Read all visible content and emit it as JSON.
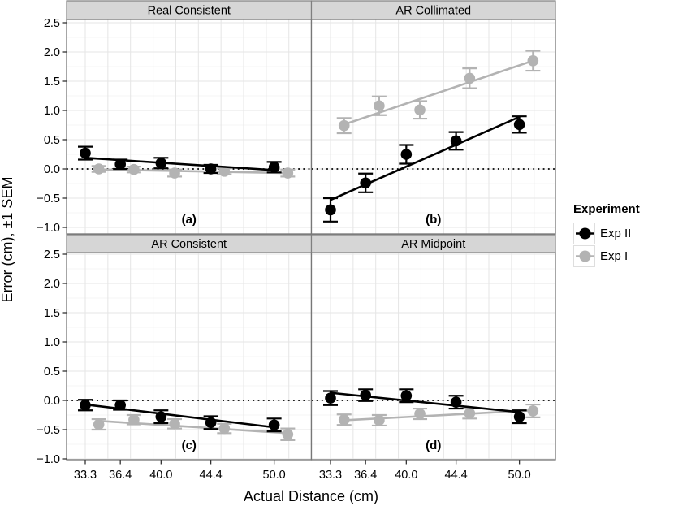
{
  "chart_data": {
    "type": "scatter",
    "title": "",
    "xlabel": "Actual Distance (cm)",
    "ylabel": "Error (cm), ±1 SEM",
    "xlim": [
      31.6,
      53.3
    ],
    "ylim": [
      -1.0,
      2.5
    ],
    "grid": "major+minor",
    "x_ticks": [
      33.3,
      36.4,
      40.0,
      44.4,
      50.0
    ],
    "x_tick_labels": [
      "33.3",
      "36.4",
      "40.0",
      "44.4",
      "50.0"
    ],
    "y_ticks": [
      2.5,
      2.0,
      1.5,
      1.0,
      0.5,
      0.0,
      -0.5,
      -1.0
    ],
    "y_tick_labels": [
      "2.5",
      "2.0",
      "1.5",
      "1.0",
      "0.5",
      "0.0",
      "−0.5",
      "−1.0"
    ],
    "zero_line": {
      "y": 0,
      "style": "dotted",
      "color": "#000000"
    },
    "dodge_cm": 1.2,
    "colors": {
      "exp2": "#000000",
      "exp1": "#b3b3b3",
      "strip_bg": "#d6d6d6",
      "strip_border": "#7f7f7f",
      "panel_border": "#777777",
      "grid_major": "#e5e5e5",
      "grid_minor": "#f4f4f4",
      "tick": "#333333"
    },
    "legend": {
      "title": "Experiment",
      "position": "right",
      "items": [
        {
          "name": "Exp II",
          "color": "#000000"
        },
        {
          "name": "Exp I",
          "color": "#b3b3b3"
        }
      ]
    },
    "panels": [
      {
        "id": "a",
        "facet": "Real Consistent",
        "label": "(a)",
        "series": [
          {
            "name": "Exp II",
            "color": "#000000",
            "x": [
              33.3,
              36.4,
              40.0,
              44.4,
              50.0
            ],
            "y": [
              0.27,
              0.08,
              0.1,
              0.0,
              0.03
            ],
            "sem": [
              0.11,
              0.08,
              0.09,
              0.07,
              0.09
            ],
            "trend": {
              "x1": 33.3,
              "y1": 0.19,
              "x2": 50.0,
              "y2": -0.02
            }
          },
          {
            "name": "Exp I",
            "color": "#b3b3b3",
            "x": [
              33.3,
              36.4,
              40.0,
              44.4,
              50.0
            ],
            "y": [
              0.0,
              -0.01,
              -0.07,
              -0.04,
              -0.07
            ],
            "sem": [
              0.05,
              0.05,
              0.06,
              0.05,
              0.06
            ],
            "trend": {
              "x1": 33.3,
              "y1": -0.01,
              "x2": 50.0,
              "y2": -0.07
            }
          }
        ]
      },
      {
        "id": "b",
        "facet": "AR Collimated",
        "label": "(b)",
        "series": [
          {
            "name": "Exp II",
            "color": "#000000",
            "x": [
              33.3,
              36.4,
              40.0,
              44.4,
              50.0
            ],
            "y": [
              -0.7,
              -0.24,
              0.25,
              0.48,
              0.76
            ],
            "sem": [
              0.2,
              0.16,
              0.16,
              0.15,
              0.14
            ],
            "trend": {
              "x1": 33.3,
              "y1": -0.53,
              "x2": 50.0,
              "y2": 0.89
            }
          },
          {
            "name": "Exp I",
            "color": "#b3b3b3",
            "x": [
              33.3,
              36.4,
              40.0,
              44.4,
              50.0
            ],
            "y": [
              0.74,
              1.08,
              1.01,
              1.55,
              1.85
            ],
            "sem": [
              0.13,
              0.16,
              0.15,
              0.17,
              0.17
            ],
            "trend": {
              "x1": 33.3,
              "y1": 0.76,
              "x2": 50.0,
              "y2": 1.85
            }
          }
        ]
      },
      {
        "id": "c",
        "facet": "AR Consistent",
        "label": "(c)",
        "series": [
          {
            "name": "Exp II",
            "color": "#000000",
            "x": [
              33.3,
              36.4,
              40.0,
              44.4,
              50.0
            ],
            "y": [
              -0.08,
              -0.08,
              -0.28,
              -0.38,
              -0.42
            ],
            "sem": [
              0.09,
              0.08,
              0.11,
              0.11,
              0.11
            ],
            "trend": {
              "x1": 33.3,
              "y1": -0.07,
              "x2": 50.0,
              "y2": -0.46
            }
          },
          {
            "name": "Exp I",
            "color": "#b3b3b3",
            "x": [
              33.3,
              36.4,
              40.0,
              44.4,
              50.0
            ],
            "y": [
              -0.41,
              -0.33,
              -0.4,
              -0.48,
              -0.58
            ],
            "sem": [
              0.09,
              0.08,
              0.08,
              0.08,
              0.1
            ],
            "trend": {
              "x1": 33.3,
              "y1": -0.35,
              "x2": 50.0,
              "y2": -0.56
            }
          }
        ]
      },
      {
        "id": "d",
        "facet": "AR Midpoint",
        "label": "(d)",
        "series": [
          {
            "name": "Exp II",
            "color": "#000000",
            "x": [
              33.3,
              36.4,
              40.0,
              44.4,
              50.0
            ],
            "y": [
              0.04,
              0.09,
              0.08,
              -0.03,
              -0.28
            ],
            "sem": [
              0.12,
              0.1,
              0.11,
              0.11,
              0.11
            ],
            "trend": {
              "x1": 33.3,
              "y1": 0.13,
              "x2": 50.0,
              "y2": -0.2
            }
          },
          {
            "name": "Exp I",
            "color": "#b3b3b3",
            "x": [
              33.3,
              36.4,
              40.0,
              44.4,
              50.0
            ],
            "y": [
              -0.33,
              -0.34,
              -0.23,
              -0.22,
              -0.18
            ],
            "sem": [
              0.09,
              0.09,
              0.09,
              0.09,
              0.11
            ],
            "trend": {
              "x1": 33.3,
              "y1": -0.34,
              "x2": 50.0,
              "y2": -0.17
            }
          }
        ]
      }
    ]
  }
}
